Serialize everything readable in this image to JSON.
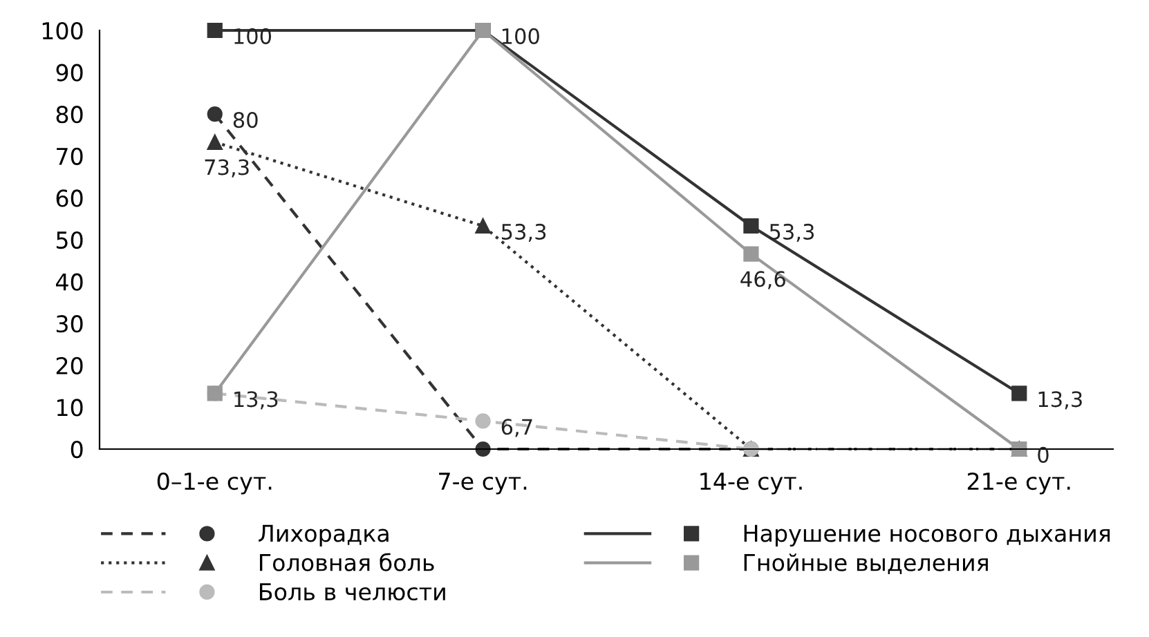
{
  "chart_data": {
    "type": "line",
    "categories": [
      "0–1-е сут.",
      "7-е сут.",
      "14-е сут.",
      "21-е сут."
    ],
    "ylim": [
      0,
      100
    ],
    "yticks": [
      0,
      10,
      20,
      30,
      40,
      50,
      60,
      70,
      80,
      90,
      100
    ],
    "grid": false,
    "legend": "bottom",
    "series": [
      {
        "name": "Лихорадка",
        "color": "#333333",
        "marker": "circle",
        "line_style": "dashed",
        "values": [
          80,
          0,
          0,
          0
        ],
        "value_labels": [
          "80",
          null,
          null,
          null
        ]
      },
      {
        "name": "Головная боль",
        "color": "#333333",
        "marker": "triangle",
        "line_style": "dotted",
        "values": [
          73.3,
          53.3,
          0,
          0
        ],
        "value_labels": [
          "73,3",
          "53,3",
          null,
          null
        ]
      },
      {
        "name": "Боль в челюсти",
        "color": "#bbbbbb",
        "marker": "circle",
        "line_style": "dashed",
        "values": [
          13.3,
          6.7,
          0,
          0
        ],
        "value_labels": [
          "13,3",
          "6,7",
          null,
          null
        ]
      },
      {
        "name": "Нарушение носового дыхания",
        "color": "#333333",
        "marker": "square",
        "line_style": "solid",
        "values": [
          100,
          100,
          53.3,
          13.3
        ],
        "value_labels": [
          "100",
          "100",
          "53,3",
          "13,3"
        ]
      },
      {
        "name": "Гнойные выделения",
        "color": "#999999",
        "marker": "square",
        "line_style": "solid",
        "values": [
          13.3,
          100,
          46.6,
          0
        ],
        "value_labels": [
          null,
          null,
          "46,6",
          "0"
        ]
      }
    ]
  }
}
